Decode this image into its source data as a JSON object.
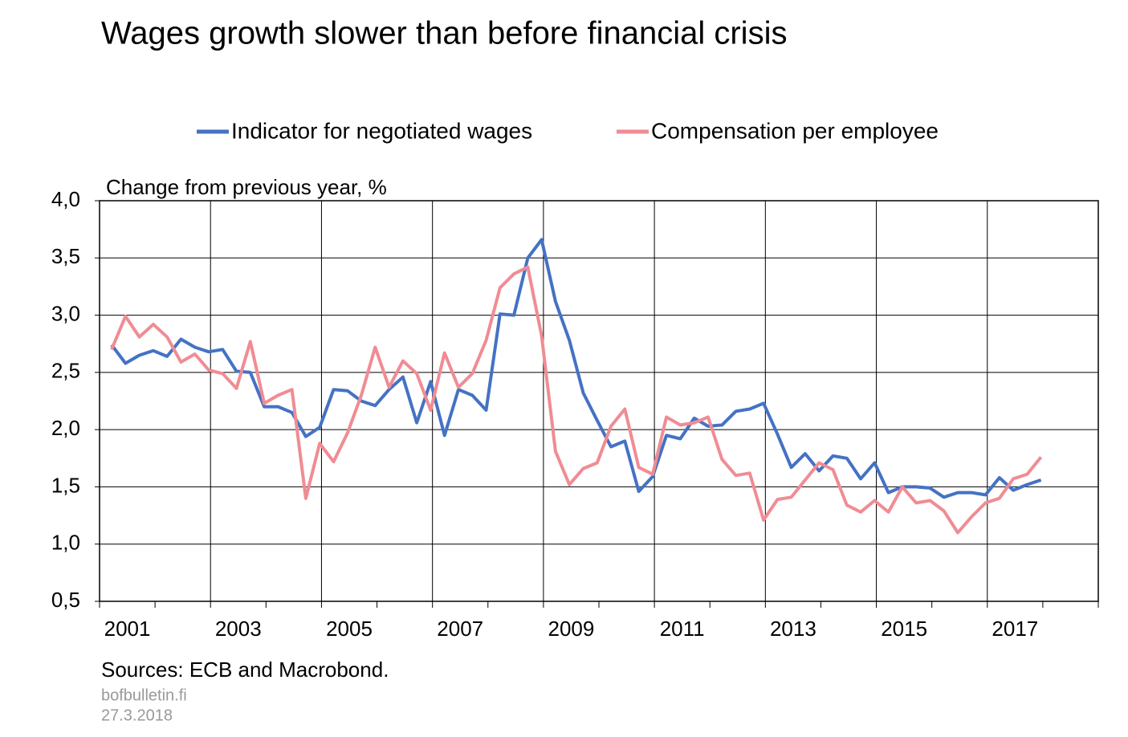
{
  "chart_data": {
    "type": "line",
    "title": "Wages growth slower than before financial crisis",
    "y_label": "Change from previous year, %",
    "source": "Sources: ECB and Macrobond.",
    "site": "bofbulletin.fi",
    "date": "27.3.2018",
    "categories": [
      "2001",
      null,
      null,
      null,
      null,
      null,
      null,
      null,
      "2003",
      null,
      null,
      null,
      null,
      null,
      null,
      null,
      "2005",
      null,
      null,
      null,
      null,
      null,
      null,
      null,
      "2007",
      null,
      null,
      null,
      null,
      null,
      null,
      null,
      "2009",
      null,
      null,
      null,
      null,
      null,
      null,
      null,
      "2011",
      null,
      null,
      null,
      null,
      null,
      null,
      null,
      "2013",
      null,
      null,
      null,
      null,
      null,
      null,
      null,
      "2015",
      null,
      null,
      null,
      null,
      null,
      null,
      null,
      "2017",
      null,
      null,
      null
    ],
    "series": [
      {
        "name": "Indicator for negotiated wages",
        "color": "#4472c4",
        "values": [
          2.74,
          2.58,
          2.65,
          2.69,
          2.64,
          2.79,
          2.72,
          2.68,
          2.7,
          2.51,
          2.5,
          2.2,
          2.2,
          2.15,
          1.94,
          2.02,
          2.35,
          2.34,
          2.25,
          2.21,
          2.35,
          2.46,
          2.06,
          2.42,
          1.95,
          2.35,
          2.3,
          2.17,
          3.01,
          3.0,
          3.5,
          3.66,
          3.12,
          2.78,
          2.32,
          2.08,
          1.85,
          1.9,
          1.46,
          1.59,
          1.95,
          1.92,
          2.1,
          2.03,
          2.04,
          2.16,
          2.18,
          2.23,
          1.96,
          1.67,
          1.79,
          1.64,
          1.77,
          1.75,
          1.57,
          1.71,
          1.45,
          1.5,
          1.5,
          1.49,
          1.41,
          1.45,
          1.45,
          1.43,
          1.58,
          1.47,
          1.52,
          1.56
        ]
      },
      {
        "name": "Compensation per employee",
        "color": "#f08c94",
        "values": [
          2.7,
          2.99,
          2.81,
          2.92,
          2.81,
          2.59,
          2.66,
          2.52,
          2.49,
          2.36,
          2.77,
          2.23,
          2.3,
          2.35,
          1.4,
          1.88,
          1.72,
          1.97,
          2.3,
          2.72,
          2.37,
          2.6,
          2.49,
          2.17,
          2.67,
          2.37,
          2.49,
          2.78,
          3.24,
          3.36,
          3.42,
          2.82,
          1.81,
          1.52,
          1.66,
          1.71,
          2.03,
          2.18,
          1.67,
          1.61,
          2.11,
          2.04,
          2.06,
          2.11,
          1.74,
          1.6,
          1.62,
          1.21,
          1.39,
          1.41,
          1.56,
          1.71,
          1.65,
          1.34,
          1.28,
          1.38,
          1.28,
          1.5,
          1.36,
          1.38,
          1.29,
          1.1,
          1.24,
          1.36,
          1.4,
          1.57,
          1.61,
          1.76
        ]
      }
    ],
    "ylim": [
      0.5,
      4.0
    ],
    "yticks": [
      {
        "value": 0.5,
        "label": "0,5"
      },
      {
        "value": 1.0,
        "label": "1,0"
      },
      {
        "value": 1.5,
        "label": "1,5"
      },
      {
        "value": 2.0,
        "label": "2,0"
      },
      {
        "value": 2.5,
        "label": "2,5"
      },
      {
        "value": 3.0,
        "label": "3,0"
      },
      {
        "value": 3.5,
        "label": "3,5"
      },
      {
        "value": 4.0,
        "label": "4,0"
      }
    ],
    "grid": true
  }
}
